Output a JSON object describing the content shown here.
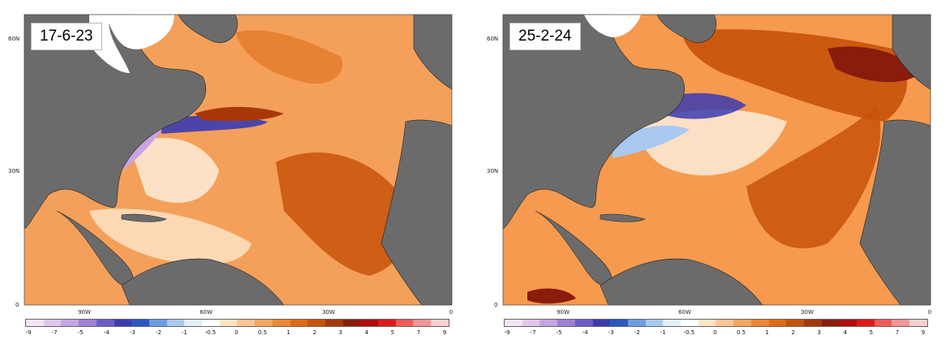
{
  "panels": [
    {
      "date": "17-6-23"
    },
    {
      "date": "25-2-24"
    }
  ],
  "axes": {
    "lat_labels": [
      "60N",
      "30N",
      "0"
    ],
    "lon_labels": [
      "90W",
      "60W",
      "30W",
      "0"
    ]
  },
  "colorbar": {
    "labels": [
      "-9",
      "-7",
      "-5",
      "-4",
      "-3",
      "-2",
      "-1",
      "-0.5",
      "0",
      "0.5",
      "1",
      "2",
      "3",
      "4",
      "5",
      "7",
      "9"
    ],
    "colors": [
      "#f4e4f6",
      "#e2c6ee",
      "#c8a4e4",
      "#9f7fd6",
      "#6b5bc9",
      "#3a3bb1",
      "#2b57c4",
      "#6c9ce2",
      "#a9c9f0",
      "#e1efff",
      "#ffffff",
      "#fde4c4",
      "#fdc594",
      "#f9a55e",
      "#f08630",
      "#e36a10",
      "#c8520a",
      "#a8380a",
      "#8a1c0c",
      "#b00c10",
      "#e01818",
      "#f55a5a",
      "#f59595",
      "#f8d0d0"
    ]
  },
  "colors": {
    "land": "#6b6b6b",
    "ocean_warm": "#f59a4e",
    "ocean_hot": "#b5420c",
    "ocean_cold": "#5a78d6"
  }
}
